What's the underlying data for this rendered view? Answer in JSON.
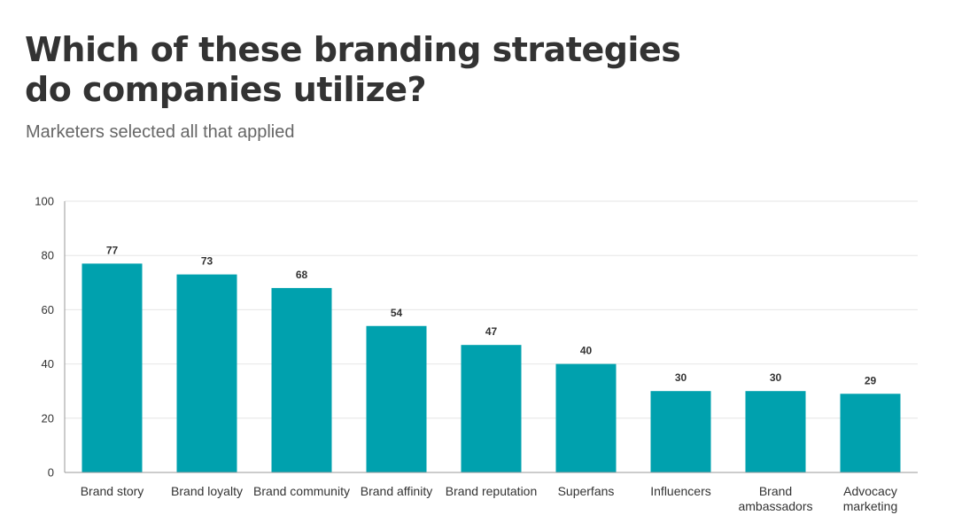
{
  "header": {
    "title_lines": [
      "Which of these branding strategies",
      "do companies utilize?"
    ],
    "subtitle": "Marketers selected all that applied"
  },
  "chart_data": {
    "type": "bar",
    "categories": [
      [
        "Brand story"
      ],
      [
        "Brand loyalty"
      ],
      [
        "Brand community"
      ],
      [
        "Brand affinity"
      ],
      [
        "Brand reputation"
      ],
      [
        "Superfans"
      ],
      [
        "Influencers"
      ],
      [
        "Brand",
        "ambassadors"
      ],
      [
        "Advocacy",
        "marketing"
      ]
    ],
    "values": [
      77,
      73,
      68,
      54,
      47,
      40,
      30,
      30,
      29
    ],
    "ylim": [
      0,
      100
    ],
    "yticks": [
      0,
      20,
      40,
      60,
      80,
      100
    ],
    "grid": true,
    "legend": "none",
    "colors": {
      "bar": "#00a1ae",
      "grid": "#e6e6e6",
      "axis": "#999999"
    }
  }
}
